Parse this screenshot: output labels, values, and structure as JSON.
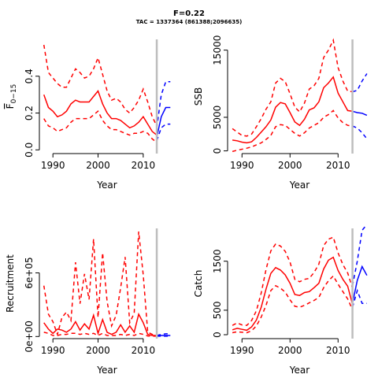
{
  "figure": {
    "title": "F=0.22",
    "subtitle": "TAC = 1337364 (861388;2096635)"
  },
  "colors": {
    "historical": "#ff0000",
    "projection": "#0000ff",
    "vline": "#bebebe"
  },
  "chart_data": [
    {
      "type": "line",
      "panel": "F",
      "xlabel": "Year",
      "ylabel_main": "F",
      "ylabel_sub": "0−15",
      "xlim": [
        1987,
        2017
      ],
      "ylim": [
        -0.02,
        0.6
      ],
      "x_ticks": [
        1990,
        2000,
        2010
      ],
      "y_ticks": [
        0,
        0.2,
        0.4
      ],
      "y_tick_labels": [
        "0.0",
        "0.2",
        "0.4"
      ],
      "vline_x": 2013,
      "series": [
        {
          "role": "historical-estimate",
          "x": [
            1988,
            1989,
            1990,
            1991,
            1992,
            1993,
            1994,
            1995,
            1996,
            1997,
            1998,
            1999,
            2000,
            2001,
            2002,
            2003,
            2004,
            2005,
            2006,
            2007,
            2008,
            2009,
            2010,
            2011,
            2012,
            2013
          ],
          "values": [
            0.3,
            0.23,
            0.21,
            0.18,
            0.19,
            0.21,
            0.25,
            0.27,
            0.26,
            0.26,
            0.26,
            0.29,
            0.32,
            0.25,
            0.2,
            0.17,
            0.17,
            0.16,
            0.14,
            0.12,
            0.13,
            0.15,
            0.18,
            0.14,
            0.1,
            0.08
          ]
        },
        {
          "role": "historical-upper",
          "x": [
            1988,
            1989,
            1990,
            1991,
            1992,
            1993,
            1994,
            1995,
            1996,
            1997,
            1998,
            1999,
            2000,
            2001,
            2002,
            2003,
            2004,
            2005,
            2006,
            2007,
            2008,
            2009,
            2010,
            2011,
            2012,
            2013
          ],
          "values": [
            0.57,
            0.42,
            0.39,
            0.36,
            0.34,
            0.34,
            0.39,
            0.44,
            0.42,
            0.39,
            0.4,
            0.44,
            0.5,
            0.41,
            0.32,
            0.27,
            0.28,
            0.26,
            0.22,
            0.2,
            0.23,
            0.27,
            0.33,
            0.26,
            0.18,
            0.13
          ]
        },
        {
          "role": "historical-lower",
          "x": [
            1988,
            1989,
            1990,
            1991,
            1992,
            1993,
            1994,
            1995,
            1996,
            1997,
            1998,
            1999,
            2000,
            2001,
            2002,
            2003,
            2004,
            2005,
            2006,
            2007,
            2008,
            2009,
            2010,
            2011,
            2012,
            2013
          ],
          "values": [
            0.17,
            0.13,
            0.12,
            0.1,
            0.11,
            0.12,
            0.15,
            0.17,
            0.17,
            0.17,
            0.17,
            0.19,
            0.21,
            0.16,
            0.13,
            0.11,
            0.11,
            0.1,
            0.09,
            0.08,
            0.09,
            0.09,
            0.1,
            0.09,
            0.06,
            0.04
          ]
        },
        {
          "role": "projection-estimate",
          "x": [
            2013,
            2014,
            2015,
            2016
          ],
          "values": [
            0.07,
            0.18,
            0.23,
            0.23
          ]
        },
        {
          "role": "projection-upper",
          "x": [
            2013,
            2014,
            2015,
            2016
          ],
          "values": [
            0.12,
            0.3,
            0.37,
            0.37
          ]
        },
        {
          "role": "projection-lower",
          "x": [
            2013,
            2014,
            2015,
            2016
          ],
          "values": [
            0.05,
            0.12,
            0.14,
            0.14
          ]
        }
      ]
    },
    {
      "type": "line",
      "panel": "SSB",
      "xlabel": "Year",
      "ylabel": "SSB",
      "xlim": [
        1987,
        2017
      ],
      "ylim": [
        -400,
        16600
      ],
      "x_ticks": [
        1990,
        2000,
        2010
      ],
      "y_ticks": [
        0,
        5000,
        15000
      ],
      "y_tick_labels": [
        "0",
        "5000",
        "15000"
      ],
      "vline_x": 2013,
      "series": [
        {
          "role": "historical-estimate",
          "x": [
            1988,
            1989,
            1990,
            1991,
            1992,
            1993,
            1994,
            1995,
            1996,
            1997,
            1998,
            1999,
            2000,
            2001,
            2002,
            2003,
            2004,
            2005,
            2006,
            2007,
            2008,
            2009,
            2010,
            2011,
            2012,
            2013
          ],
          "values": [
            1600,
            1500,
            1300,
            1200,
            1350,
            2000,
            2800,
            3600,
            4600,
            6500,
            7200,
            7000,
            5700,
            4300,
            3800,
            4700,
            6100,
            6400,
            7300,
            9400,
            10100,
            11000,
            8600,
            7300,
            6000,
            5900
          ]
        },
        {
          "role": "historical-upper",
          "x": [
            1988,
            1989,
            1990,
            1991,
            1992,
            1993,
            1994,
            1995,
            1996,
            1997,
            1998,
            1999,
            2000,
            2001,
            2002,
            2003,
            2004,
            2005,
            2006,
            2007,
            2008,
            2009,
            2010,
            2011,
            2012,
            2013
          ],
          "values": [
            3300,
            2800,
            2300,
            2200,
            2500,
            3600,
            4800,
            6200,
            7300,
            10100,
            10800,
            10300,
            8500,
            6500,
            5800,
            7100,
            9200,
            9700,
            10800,
            13900,
            15000,
            16500,
            12400,
            10400,
            8900,
            8800
          ]
        },
        {
          "role": "historical-lower",
          "x": [
            1988,
            1989,
            1990,
            1991,
            1992,
            1993,
            1994,
            1995,
            1996,
            1997,
            1998,
            1999,
            2000,
            2001,
            2002,
            2003,
            2004,
            2005,
            2006,
            2007,
            2008,
            2009,
            2010,
            2011,
            2012,
            2013
          ],
          "values": [
            -100,
            100,
            250,
            400,
            600,
            900,
            1200,
            1700,
            2300,
            3600,
            3900,
            3800,
            3200,
            2600,
            2200,
            2700,
            3400,
            3800,
            4200,
            5000,
            5400,
            6000,
            4900,
            4200,
            3800,
            3700
          ]
        },
        {
          "role": "projection-estimate",
          "x": [
            2013,
            2014,
            2015,
            2016
          ],
          "values": [
            5900,
            5700,
            5600,
            5300
          ]
        },
        {
          "role": "projection-upper",
          "x": [
            2013,
            2014,
            2015,
            2016
          ],
          "values": [
            8800,
            9000,
            10400,
            11500
          ]
        },
        {
          "role": "projection-lower",
          "x": [
            2013,
            2014,
            2015,
            2016
          ],
          "values": [
            3700,
            3400,
            2700,
            1800
          ]
        }
      ]
    },
    {
      "type": "line",
      "panel": "Recruitment",
      "xlabel": "Year",
      "ylabel": "Recruitment",
      "xlim": [
        1987,
        2017
      ],
      "ylim": [
        -20000,
        1020000
      ],
      "x_ticks": [
        1990,
        2000,
        2010
      ],
      "y_ticks": [
        0,
        600000
      ],
      "y_tick_labels": [
        "0e+00",
        "6e+05"
      ],
      "vline_x": 2013,
      "series": [
        {
          "role": "historical-estimate",
          "x": [
            1988,
            1989,
            1990,
            1991,
            1992,
            1993,
            1994,
            1995,
            1996,
            1997,
            1998,
            1999,
            2000,
            2001,
            2002,
            2003,
            2004,
            2005,
            2006,
            2007,
            2008,
            2009,
            2010,
            2011,
            2012,
            2013
          ],
          "values": [
            130000,
            70000,
            30000,
            70000,
            60000,
            40000,
            70000,
            140000,
            60000,
            120000,
            70000,
            200000,
            30000,
            160000,
            40000,
            20000,
            40000,
            110000,
            40000,
            100000,
            40000,
            210000,
            130000,
            20000,
            10000,
            10000
          ]
        },
        {
          "role": "historical-upper",
          "x": [
            1988,
            1989,
            1990,
            1991,
            1992,
            1993,
            1994,
            1995,
            1996,
            1997,
            1998,
            1999,
            2000,
            2001,
            2002,
            2003,
            2004,
            2005,
            2006,
            2007,
            2008,
            2009,
            2010,
            2011,
            2012,
            2013
          ],
          "values": [
            480000,
            210000,
            140000,
            20000,
            180000,
            230000,
            150000,
            700000,
            310000,
            590000,
            350000,
            920000,
            180000,
            790000,
            330000,
            100000,
            200000,
            460000,
            750000,
            130000,
            220000,
            990000,
            580000,
            40000,
            20000,
            10000
          ]
        },
        {
          "role": "historical-lower",
          "x": [
            1988,
            1989,
            1990,
            1991,
            1992,
            1993,
            1994,
            1995,
            1996,
            1997,
            1998,
            1999,
            2000,
            2001,
            2002,
            2003,
            2004,
            2005,
            2006,
            2007,
            2008,
            2009,
            2010,
            2011,
            2012,
            2013
          ],
          "values": [
            40000,
            30000,
            10000,
            10000,
            20000,
            20000,
            30000,
            30000,
            20000,
            30000,
            20000,
            30000,
            10000,
            30000,
            10000,
            10000,
            10000,
            20000,
            10000,
            20000,
            10000,
            30000,
            20000,
            5000,
            3000,
            3000
          ]
        },
        {
          "role": "projection-estimate",
          "x": [
            2013,
            2014,
            2015,
            2016
          ],
          "values": [
            10000,
            10000,
            10000,
            10000
          ]
        },
        {
          "role": "projection-upper",
          "x": [
            2013,
            2014,
            2015,
            2016
          ],
          "values": [
            10000,
            20000,
            25000,
            25000
          ]
        },
        {
          "role": "projection-lower",
          "x": [
            2013,
            2014,
            2015,
            2016
          ],
          "values": [
            3000,
            3000,
            3000,
            3000
          ]
        }
      ]
    },
    {
      "type": "line",
      "panel": "Catch",
      "xlabel": "Year",
      "ylabel": "Catch",
      "xlim": [
        1987,
        2017
      ],
      "ylim": [
        -80,
        2170
      ],
      "x_ticks": [
        1990,
        2000,
        2010
      ],
      "y_ticks": [
        0,
        500,
        1500
      ],
      "y_tick_labels": [
        "0",
        "500",
        "1500"
      ],
      "vline_x": 2013,
      "series": [
        {
          "role": "historical-estimate",
          "x": [
            1988,
            1989,
            1990,
            1991,
            1992,
            1993,
            1994,
            1995,
            1996,
            1997,
            1998,
            1999,
            2000,
            2001,
            2002,
            2003,
            2004,
            2005,
            2006,
            2007,
            2008,
            2009,
            2010,
            2011,
            2012,
            2013
          ],
          "values": [
            100,
            130,
            110,
            90,
            160,
            300,
            560,
            930,
            1250,
            1370,
            1320,
            1220,
            1050,
            820,
            800,
            860,
            880,
            960,
            1050,
            1340,
            1520,
            1580,
            1310,
            1130,
            990,
            620
          ]
        },
        {
          "role": "historical-upper",
          "x": [
            1988,
            1989,
            1990,
            1991,
            1992,
            1993,
            1994,
            1995,
            1996,
            1997,
            1998,
            1999,
            2000,
            2001,
            2002,
            2003,
            2004,
            2005,
            2006,
            2007,
            2008,
            2009,
            2010,
            2011,
            2012,
            2013
          ],
          "values": [
            190,
            240,
            200,
            190,
            290,
            490,
            850,
            1330,
            1710,
            1850,
            1810,
            1700,
            1480,
            1130,
            1080,
            1130,
            1150,
            1270,
            1440,
            1820,
            1950,
            1990,
            1670,
            1430,
            1260,
            950
          ]
        },
        {
          "role": "historical-lower",
          "x": [
            1988,
            1989,
            1990,
            1991,
            1992,
            1993,
            1994,
            1995,
            1996,
            1997,
            1998,
            1999,
            2000,
            2001,
            2002,
            2003,
            2004,
            2005,
            2006,
            2007,
            2008,
            2009,
            2010,
            2011,
            2012,
            2013
          ],
          "values": [
            40,
            60,
            50,
            40,
            80,
            180,
            360,
            600,
            900,
            1000,
            950,
            870,
            710,
            580,
            560,
            600,
            650,
            700,
            760,
            960,
            1100,
            1200,
            1030,
            880,
            730,
            510
          ]
        },
        {
          "role": "projection-estimate",
          "x": [
            2013,
            2014,
            2015,
            2016
          ],
          "values": [
            640,
            1110,
            1390,
            1210
          ]
        },
        {
          "role": "projection-upper",
          "x": [
            2013,
            2014,
            2015,
            2016
          ],
          "values": [
            1000,
            1500,
            2130,
            2250
          ]
        },
        {
          "role": "projection-lower",
          "x": [
            2013,
            2014,
            2015,
            2016
          ],
          "values": [
            560,
            900,
            640,
            640
          ]
        }
      ]
    }
  ]
}
